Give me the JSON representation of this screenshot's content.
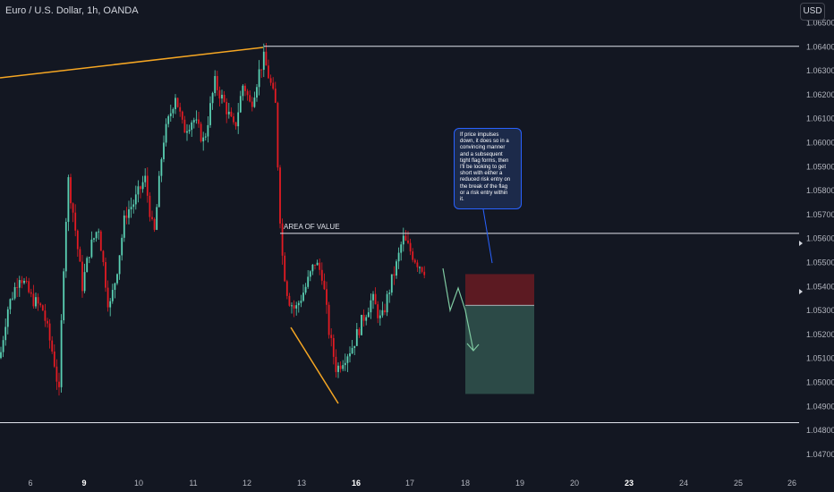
{
  "header": {
    "symbol_title": "Euro / U.S. Dollar, 1h, OANDA",
    "currency": "USD"
  },
  "annotation": {
    "area_label": "AREA OF VALUE",
    "note": "If price impulses\ndown, it does so in a\nconvincing manner\nand a subsequent\ntight flag forms, then\nI'll be looking to get\nshort with either a\nreduced risk entry on\nthe break of the flag\nor a risk entry within\nit."
  },
  "colors": {
    "background": "#131722",
    "bull": "#5ad0b3",
    "bear": "#e21b23",
    "trendline": "#f5a623",
    "level": "#e0e3eb",
    "risk": "#5c1a22",
    "reward": "#2c4a47",
    "projection": "#7ec8a0"
  },
  "chart_data": {
    "type": "candlestick",
    "y_axis_labels": [
      "1.06500",
      "1.06400",
      "1.06300",
      "1.06200",
      "1.06100",
      "1.06000",
      "1.05900",
      "1.05800",
      "1.05700",
      "1.05600",
      "1.05500",
      "1.05400",
      "1.05300",
      "1.05200",
      "1.05100",
      "1.05000",
      "1.04900",
      "1.04800",
      "1.04700"
    ],
    "x_axis_labels": [
      {
        "label": "6",
        "bold": false
      },
      {
        "label": "9",
        "bold": true
      },
      {
        "label": "10",
        "bold": false
      },
      {
        "label": "11",
        "bold": false
      },
      {
        "label": "12",
        "bold": false
      },
      {
        "label": "13",
        "bold": false
      },
      {
        "label": "16",
        "bold": true
      },
      {
        "label": "17",
        "bold": false
      },
      {
        "label": "18",
        "bold": false
      },
      {
        "label": "19",
        "bold": false
      },
      {
        "label": "20",
        "bold": false
      },
      {
        "label": "23",
        "bold": true
      },
      {
        "label": "24",
        "bold": false
      },
      {
        "label": "25",
        "bold": false
      },
      {
        "label": "26",
        "bold": false
      }
    ],
    "levels": [
      1.064,
      1.0562,
      1.0483
    ],
    "position": {
      "entry": 1.0532,
      "stop": 1.0545,
      "target": 1.0495
    }
  }
}
